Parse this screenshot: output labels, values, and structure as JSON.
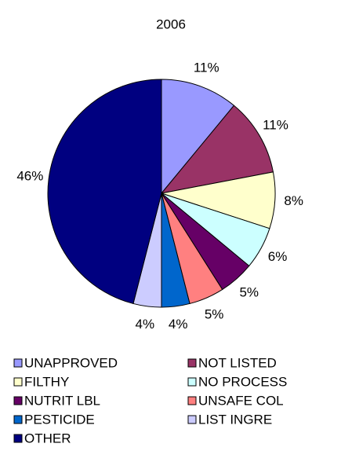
{
  "chart_data": {
    "type": "pie",
    "title": "2006",
    "categories": [
      "UNAPPROVED",
      "NOT LISTED",
      "FILTHY",
      "NO PROCESS",
      "NUTRIT LBL",
      "UNSAFE COL",
      "PESTICIDE",
      "LIST INGRE",
      "OTHER"
    ],
    "values": [
      11,
      11,
      8,
      6,
      5,
      5,
      4,
      4,
      46
    ],
    "value_labels": [
      "11%",
      "11%",
      "8%",
      "6%",
      "5%",
      "5%",
      "4%",
      "4%",
      "46%"
    ],
    "colors": [
      "#9999ff",
      "#993366",
      "#ffffcc",
      "#ccffff",
      "#660066",
      "#ff8080",
      "#0066cc",
      "#ccccff",
      "#000080"
    ],
    "legend": "bottom"
  }
}
